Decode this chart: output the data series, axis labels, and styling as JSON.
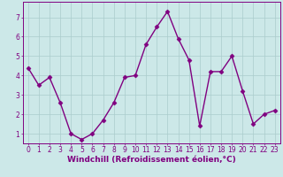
{
  "x": [
    0,
    1,
    2,
    3,
    4,
    5,
    6,
    7,
    8,
    9,
    10,
    11,
    12,
    13,
    14,
    15,
    16,
    17,
    18,
    19,
    20,
    21,
    22,
    23
  ],
  "y": [
    4.4,
    3.5,
    3.9,
    2.6,
    1.0,
    0.7,
    1.0,
    1.7,
    2.6,
    3.9,
    4.0,
    5.6,
    6.5,
    7.3,
    5.9,
    4.8,
    1.4,
    4.2,
    4.2,
    5.0,
    3.2,
    1.5,
    2.0,
    2.2
  ],
  "line_color": "#800080",
  "marker": "D",
  "marker_size": 2.5,
  "background_color": "#cce8e8",
  "grid_color": "#aacccc",
  "xlabel": "Windchill (Refroidissement éolien,°C)",
  "xlim": [
    -0.5,
    23.5
  ],
  "ylim": [
    0.5,
    7.8
  ],
  "yticks": [
    1,
    2,
    3,
    4,
    5,
    6,
    7
  ],
  "xticks": [
    0,
    1,
    2,
    3,
    4,
    5,
    6,
    7,
    8,
    9,
    10,
    11,
    12,
    13,
    14,
    15,
    16,
    17,
    18,
    19,
    20,
    21,
    22,
    23
  ],
  "tick_label_color": "#800080",
  "xlabel_color": "#800080",
  "spine_color": "#800080",
  "xlabel_fontsize": 6.5,
  "tick_fontsize": 5.5,
  "linewidth": 1.0
}
